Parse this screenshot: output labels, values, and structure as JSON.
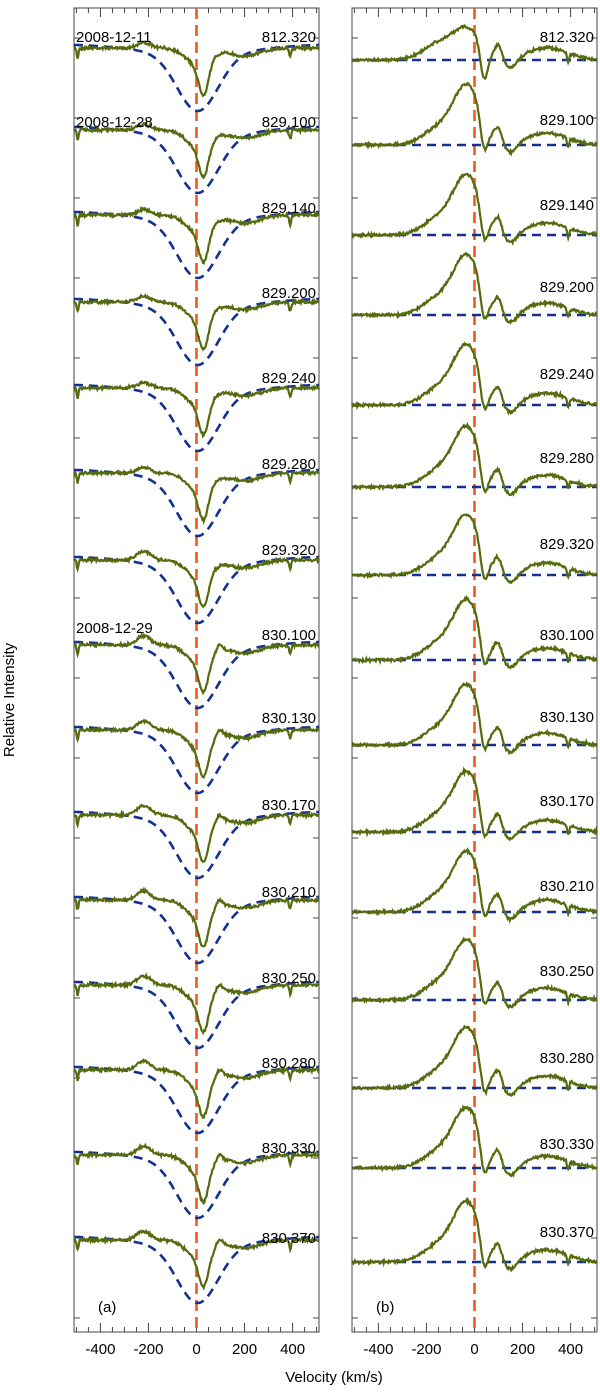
{
  "figure": {
    "ylabel": "Relative Intensity",
    "xlabel": "Velocity (km/s)"
  },
  "colors": {
    "observed": "#556b0e",
    "model": "#13318f",
    "zero_line": "#f05a1e",
    "frame": "#444444"
  },
  "chart_data": [
    {
      "type": "line",
      "panel_label": "(a)",
      "xlabel": "Velocity (km/s)",
      "xlim": [
        -510,
        510
      ],
      "xticks": [
        -400,
        -200,
        0,
        200,
        400
      ],
      "grid": false,
      "dates": [
        {
          "text": "2008-12-11",
          "row": 0
        },
        {
          "text": "2008-12-28",
          "row": 1
        },
        {
          "text": "2008-12-29",
          "row": 7
        }
      ],
      "rows": [
        "812.320",
        "829.100",
        "829.140",
        "829.200",
        "829.240",
        "829.280",
        "829.320",
        "830.100",
        "830.130",
        "830.170",
        "830.210",
        "830.250",
        "830.280",
        "830.330",
        "830.370"
      ],
      "series": [
        {
          "kind": "observed",
          "profile": "absorption",
          "depth": 0.48,
          "center_kms": 30
        },
        {
          "kind": "model",
          "profile": "rotational-broadening",
          "depth": 0.45,
          "center_kms": 5
        }
      ]
    },
    {
      "type": "line",
      "panel_label": "(b)",
      "xlabel": "Velocity (km/s)",
      "xlim": [
        -510,
        510
      ],
      "xticks": [
        -400,
        -200,
        0,
        200,
        400
      ],
      "grid": false,
      "rows": [
        "812.320",
        "829.100",
        "829.140",
        "829.200",
        "829.240",
        "829.280",
        "829.320",
        "830.100",
        "830.130",
        "830.170",
        "830.210",
        "830.250",
        "830.280",
        "830.330",
        "830.370"
      ],
      "series": [
        {
          "kind": "observed",
          "profile": "residual",
          "emission_peak_kms": -30,
          "absorption_kms": 40
        },
        {
          "kind": "model",
          "profile": "flat-baseline"
        }
      ]
    }
  ]
}
